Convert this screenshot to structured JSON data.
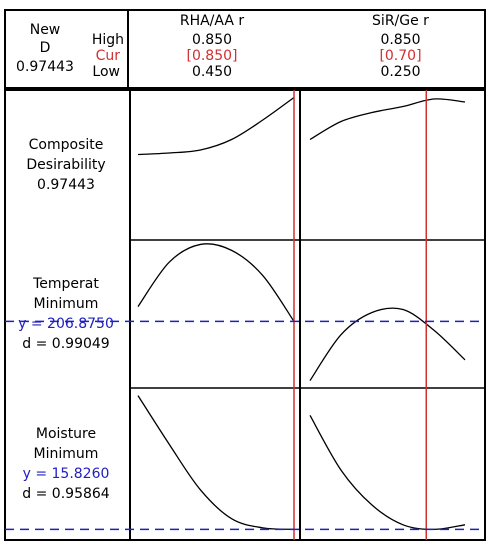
{
  "chart_data": {
    "type": "optimizer",
    "header": {
      "new": "New",
      "d": "D",
      "d_value": "0.97443",
      "high": "High",
      "cur": "Cur",
      "low": "Low"
    },
    "factors": [
      {
        "name": "RHA/AA r",
        "high": {
          "value": 0.85,
          "label": "0.850"
        },
        "cur": {
          "value": 0.85,
          "label": "[0.850]"
        },
        "low": {
          "value": 0.45,
          "label": "0.450"
        }
      },
      {
        "name": "SiR/Ge r",
        "high": {
          "value": 0.85,
          "label": "0.850"
        },
        "cur": {
          "value": 0.7,
          "label": "[0.70]"
        },
        "low": {
          "value": 0.25,
          "label": "0.250"
        }
      }
    ],
    "ylim": [
      0,
      1
    ],
    "responses": [
      {
        "lines": [
          "Composite",
          "Desirability",
          "0.97443"
        ],
        "target": null,
        "curves": [
          [
            0.57,
            0.58,
            0.6,
            0.67,
            0.8,
            0.95
          ],
          [
            0.67,
            0.79,
            0.85,
            0.89,
            0.94,
            0.92
          ]
        ]
      },
      {
        "lines": [
          "Temperat",
          "Minimum"
        ],
        "y_text": "y = 206.8750",
        "d_text": "d = 0.99049",
        "target": 0.45,
        "curves": [
          [
            0.55,
            0.85,
            0.97,
            0.93,
            0.76,
            0.45
          ],
          [
            0.05,
            0.36,
            0.51,
            0.53,
            0.39,
            0.19
          ]
        ]
      },
      {
        "lines": [
          "Moisture",
          "Minimum"
        ],
        "y_text": "y = 15.8260",
        "d_text": "d = 0.95864",
        "target": 0.07,
        "curves": [
          [
            0.95,
            0.63,
            0.33,
            0.14,
            0.08,
            0.07
          ],
          [
            0.82,
            0.46,
            0.23,
            0.1,
            0.07,
            0.1
          ]
        ]
      }
    ]
  }
}
